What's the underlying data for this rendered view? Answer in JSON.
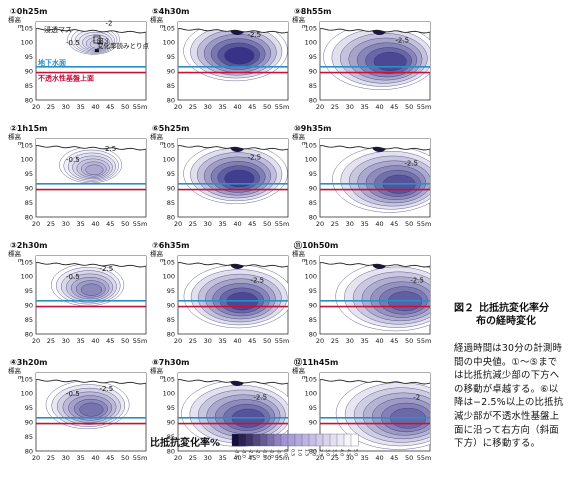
{
  "figure": {
    "number": "図２",
    "title": "比抵抗変化率分",
    "title_line2": "布の経時変化",
    "caption": "経過時間は30分の計測時間の中央値。①〜⑤までは比抵抗減少部の下方への移動が卓越する。⑥以降は−2.5%以上の比抵抗減少部が不透水性基盤上面に沿って右方向（斜面下方）に移動する。"
  },
  "colors": {
    "groundwater_line": "#2a8fc8",
    "bedrock_line": "#c2143b",
    "contour_line": "#2c2a6e",
    "min_fill": "#1a1440",
    "max_fill": "#ffffff"
  },
  "chart_data": {
    "type": "heatmap",
    "ylabel": "標高",
    "yunit": "m",
    "xunit": "m",
    "x_ticks": [
      "20",
      "25",
      "30",
      "35",
      "40",
      "45",
      "50",
      "55m"
    ],
    "y_ticks": [
      "105",
      "100",
      "95",
      "90",
      "85",
      "80"
    ],
    "xlim": [
      20,
      57
    ],
    "ylim": [
      80,
      107
    ],
    "groundwater_level": 91.5,
    "bedrock_top_level": 89.5,
    "colorbar": {
      "label": "比抵抗変化率%",
      "ticks": [
        "-3.5",
        "-3.0",
        "-2.5",
        "-2.0",
        "-1.5",
        "-1.0",
        "-0.5",
        "0.0",
        "0.5",
        "1.0",
        "1.5",
        "2.0",
        "2.5",
        "3.0",
        "3.5",
        "4.0",
        "4.5",
        "5.0"
      ]
    },
    "annotations": {
      "infiltration_basin": "浸透マス",
      "figure3_point": "図３",
      "figure3_point_line2": "変化率読みとり点",
      "groundwater_surface": "地下水面",
      "bedrock_surface": "不透水性基盤上面"
    },
    "panels": [
      {
        "label": "①0h25m",
        "contours": [
          "-2",
          "-0.5"
        ],
        "intensity": 0.25,
        "cx": 40,
        "cy": 101,
        "spread": 0.5
      },
      {
        "label": "②1h15m",
        "contours": [
          "-2.5",
          "-0.5"
        ],
        "intensity": 0.4,
        "cx": 39,
        "cy": 98,
        "spread": 0.6
      },
      {
        "label": "③2h30m",
        "contours": [
          "-2.5",
          "-0.5"
        ],
        "intensity": 0.55,
        "cx": 38,
        "cy": 97,
        "spread": 0.7
      },
      {
        "label": "④3h20m",
        "contours": [
          "-2.5",
          "-0.5"
        ],
        "intensity": 0.65,
        "cx": 38,
        "cy": 96,
        "spread": 0.8
      },
      {
        "label": "⑤4h30m",
        "contours": [
          "-2.5"
        ],
        "intensity": 0.95,
        "cx": 40,
        "cy": 97,
        "spread": 1.0
      },
      {
        "label": "⑥5h25m",
        "contours": [
          "-2.5"
        ],
        "intensity": 0.9,
        "cx": 40,
        "cy": 95,
        "spread": 1.0
      },
      {
        "label": "⑦6h35m",
        "contours": [
          "-2.5"
        ],
        "intensity": 0.85,
        "cx": 41,
        "cy": 93,
        "spread": 1.05
      },
      {
        "label": "⑧7h30m",
        "contours": [
          "-2.5"
        ],
        "intensity": 0.8,
        "cx": 42,
        "cy": 93,
        "spread": 1.1
      },
      {
        "label": "⑨8h55m",
        "contours": [
          "-2.5"
        ],
        "intensity": 0.85,
        "cx": 42,
        "cy": 95,
        "spread": 1.1
      },
      {
        "label": "⑩9h35m",
        "contours": [
          "-2.5"
        ],
        "intensity": 0.8,
        "cx": 45,
        "cy": 93,
        "spread": 1.1
      },
      {
        "label": "⑪10h50m",
        "contours": [
          "-2.5"
        ],
        "intensity": 0.75,
        "cx": 47,
        "cy": 93,
        "spread": 1.15
      },
      {
        "label": "⑫11h45m",
        "contours": [
          "-2"
        ],
        "intensity": 0.7,
        "cx": 48,
        "cy": 93,
        "spread": 1.2
      }
    ]
  }
}
